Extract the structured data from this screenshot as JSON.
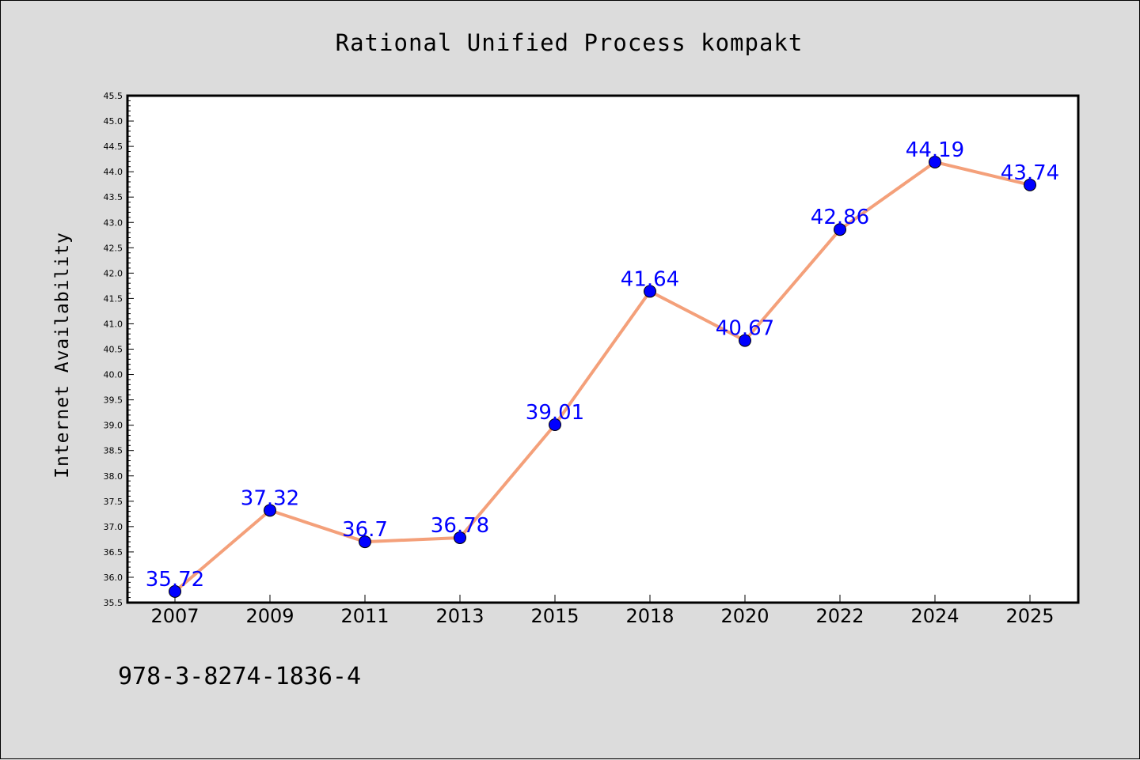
{
  "chart_data": {
    "type": "line",
    "title": "Rational Unified Process kompakt",
    "ylabel": "Internet Availability",
    "xlabel": "",
    "categories": [
      "2007",
      "2009",
      "2011",
      "2013",
      "2015",
      "2018",
      "2020",
      "2022",
      "2024",
      "2025"
    ],
    "series": [
      {
        "values": [
          35.72,
          37.32,
          36.7,
          36.78,
          39.01,
          41.64,
          40.67,
          42.86,
          44.19,
          43.74
        ],
        "labels": [
          "35.72",
          "37.32",
          "36.7",
          "36.78",
          "39.01",
          "41.64",
          "40.67",
          "42.86",
          "44.19",
          "43.74"
        ],
        "line_color": "#f4a07a",
        "marker_color": "#0000ff"
      }
    ],
    "ylim": [
      35.5,
      45.5
    ],
    "yticks": [
      "35.5",
      "36.0",
      "36.5",
      "37.0",
      "37.5",
      "38.0",
      "38.5",
      "39.0",
      "39.5",
      "40.0",
      "40.5",
      "41.0",
      "41.5",
      "42.0",
      "42.5",
      "43.0",
      "43.5",
      "44.0",
      "44.5",
      "45.0",
      "45.5"
    ],
    "grid": false
  },
  "footer_text": "978-3-8274-1836-4",
  "colors": {
    "background": "#dcdcdc",
    "plot_background": "#ffffff",
    "label_color": "#0000ff"
  }
}
